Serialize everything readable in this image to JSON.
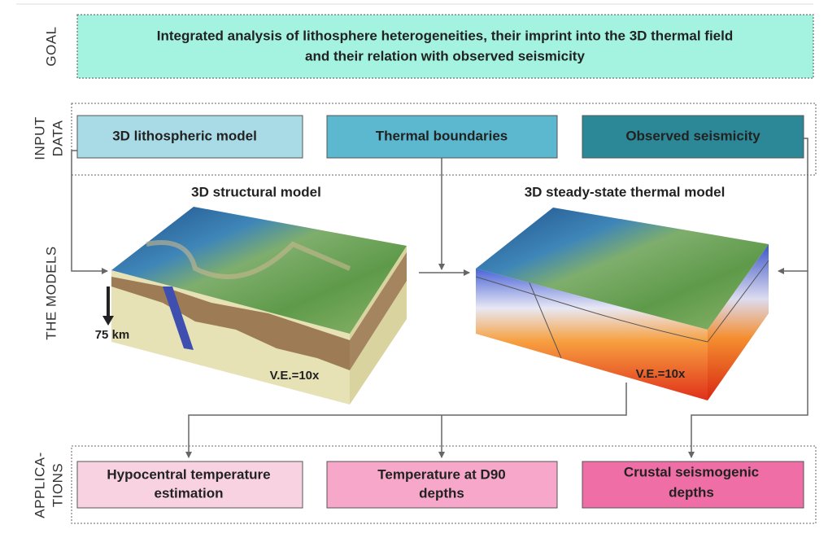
{
  "goal": {
    "label": "GOAL",
    "lines": [
      "Integrated analysis of lithosphere heterogeneities, their imprint into the 3D thermal field",
      "and their relation with observed seismicity"
    ]
  },
  "input_data": {
    "label_lines": [
      "INPUT",
      "DATA"
    ],
    "boxes": [
      "3D lithospheric model",
      "Thermal boundaries",
      "Observed seismicity"
    ]
  },
  "models": {
    "label": "THE MODELS",
    "structural": {
      "title": "3D structural model",
      "depth_label": "75 km",
      "exaggeration": "V.E.=10x"
    },
    "thermal": {
      "title": "3D steady-state thermal model",
      "exaggeration": "V.E.=10x"
    }
  },
  "applications": {
    "label_lines": [
      "APPLICA-",
      "TIONS"
    ],
    "boxes": [
      [
        "Hypocentral temperature",
        "estimation"
      ],
      [
        "Temperature at  D90",
        "depths"
      ],
      [
        "Crustal seismogenic",
        "depths"
      ]
    ]
  }
}
